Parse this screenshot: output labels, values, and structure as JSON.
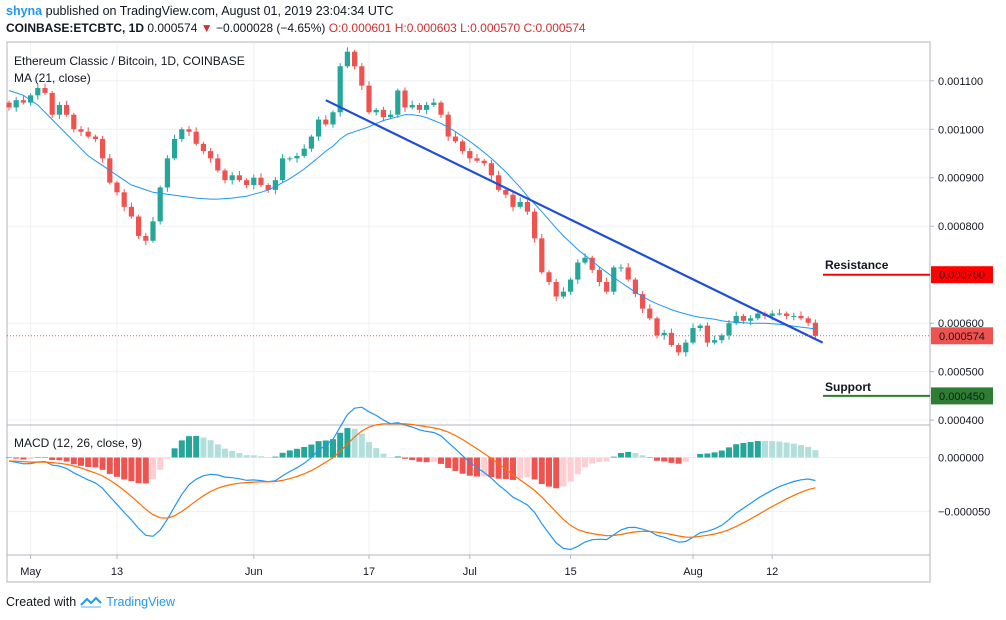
{
  "header": {
    "user": "shyna",
    "published_text": " published on TradingView.com, August 01, 2019 23:04:34 UTC",
    "symbol": "COINBASE:ETCBTC, 1D",
    "price": " 0.000574 ",
    "change_arrow": "▼",
    "change": " −0.000028 (−4.65%)",
    "ohlc": " O:0.000601 H:0.000603 L:0.000570 C:0.000574"
  },
  "footer": {
    "created_with": "Created with",
    "brand": "TradingView"
  },
  "colors": {
    "up": "#26a69a",
    "down": "#ef5350",
    "ma": "#2196f3",
    "trendline": "#1e4ed8",
    "resistance": "#ff0000",
    "support": "#2e7d32",
    "label_purple": "#8e6bbd",
    "label_maroon": "#880e4f",
    "signal": "#ff6d00",
    "macd_line": "#2196f3"
  },
  "chart_data": [
    {
      "type": "candlestick",
      "title": "Ethereum Classic / Bitcoin, 1D, COINBASE",
      "indicator_label": "MA (21, close)",
      "x_tick_labels": [
        "May",
        "13",
        "Jun",
        "17",
        "Jul",
        "15",
        "Aug",
        "12"
      ],
      "y_tick_labels": [
        "0.001100",
        "0.001000",
        "0.000900",
        "0.000800",
        "0.000600",
        "0.000500",
        "0.000400"
      ],
      "ylim": [
        0.00039,
        0.00118
      ],
      "start_date": "2019-04-28",
      "closes": [
        0.001045,
        0.00106,
        0.001055,
        0.00107,
        0.001085,
        0.001075,
        0.00103,
        0.00105,
        0.00103,
        0.001,
        0.000995,
        0.000985,
        0.00098,
        0.00094,
        0.00089,
        0.00087,
        0.00084,
        0.00082,
        0.00078,
        0.00077,
        0.00081,
        0.00088,
        0.00094,
        0.00098,
        0.001,
        0.000995,
        0.00097,
        0.000955,
        0.00094,
        0.000915,
        0.000895,
        0.000905,
        0.000895,
        0.000885,
        0.0009,
        0.000885,
        0.000875,
        0.000895,
        0.00094,
        0.00094,
        0.000945,
        0.00096,
        0.000985,
        0.00102,
        0.00101,
        0.001035,
        0.00113,
        0.00116,
        0.00113,
        0.00109,
        0.001035,
        0.00104,
        0.001025,
        0.00103,
        0.00108,
        0.001045,
        0.00105,
        0.00104,
        0.00105,
        0.001055,
        0.00103,
        0.000985,
        0.000975,
        0.000955,
        0.00094,
        0.000935,
        0.00093,
        0.000905,
        0.000875,
        0.000865,
        0.00084,
        0.00085,
        0.00083,
        0.000775,
        0.000705,
        0.000685,
        0.000655,
        0.000665,
        0.00069,
        0.000725,
        0.000735,
        0.00071,
        0.000685,
        0.000665,
        0.000715,
        0.000715,
        0.00069,
        0.00066,
        0.00063,
        0.00061,
        0.000575,
        0.00058,
        0.000555,
        0.00054,
        0.00056,
        0.00059,
        0.000595,
        0.00056,
        0.000565,
        0.000575,
        0.0006,
        0.000615,
        0.000605,
        0.00061,
        0.00062,
        0.000615,
        0.00062,
        0.00062,
        0.000615,
        0.000615,
        0.00061,
        0.000601,
        0.000574
      ],
      "ma21": [
        0.00108,
        0.001075,
        0.00107,
        0.00106,
        0.00105,
        0.001035,
        0.00102,
        0.001005,
        0.00099,
        0.000975,
        0.00096,
        0.000945,
        0.000935,
        0.000925,
        0.000915,
        0.000905,
        0.000895,
        0.000885,
        0.00088,
        0.000875,
        0.00087,
        0.000868,
        0.000866,
        0.000864,
        0.000862,
        0.00086,
        0.000858,
        0.000857,
        0.000856,
        0.000856,
        0.000857,
        0.000858,
        0.00086,
        0.000862,
        0.000866,
        0.00087,
        0.000875,
        0.000882,
        0.00089,
        0.000898,
        0.000908,
        0.000918,
        0.00093,
        0.000942,
        0.000955,
        0.000965,
        0.00098,
        0.00099,
        0.000995,
        0.001,
        0.001005,
        0.001012,
        0.001018,
        0.001022,
        0.001026,
        0.00103,
        0.00103,
        0.001028,
        0.001024,
        0.001018,
        0.001012,
        0.001004,
        0.000995,
        0.000985,
        0.000975,
        0.000964,
        0.000952,
        0.00094,
        0.000926,
        0.000912,
        0.000896,
        0.00088,
        0.000862,
        0.000846,
        0.00083,
        0.000813,
        0.000796,
        0.00078,
        0.000766,
        0.000752,
        0.00074,
        0.000728,
        0.000716,
        0.000705,
        0.000694,
        0.000684,
        0.000674,
        0.000664,
        0.000655,
        0.000647,
        0.00064,
        0.000634,
        0.000628,
        0.000623,
        0.000619,
        0.000615,
        0.000612,
        0.00061,
        0.000608,
        0.000605,
        0.000603,
        0.000602,
        0.000601,
        0.0006,
        0.0006,
        0.0006,
        0.000599,
        0.000598,
        0.000596,
        0.000594,
        0.000592,
        0.00059,
        0.000588
      ],
      "last_price_label": "0.000574",
      "resistance": {
        "label": "Resistance",
        "value": 0.0007,
        "price_label": "0.000700"
      },
      "support": {
        "label": "Support",
        "value": 0.00045,
        "price_label": "0.000450"
      },
      "trendline": {
        "from_day": 44,
        "from_value": 0.00106,
        "to_day": 113,
        "to_value": 0.00056
      }
    },
    {
      "type": "macd",
      "title": "MACD (12, 26, close, 9)",
      "y_tick_labels": [
        "0.000000",
        "−0.000050"
      ],
      "ylim": [
        -9e-05,
        3e-05
      ]
    }
  ]
}
